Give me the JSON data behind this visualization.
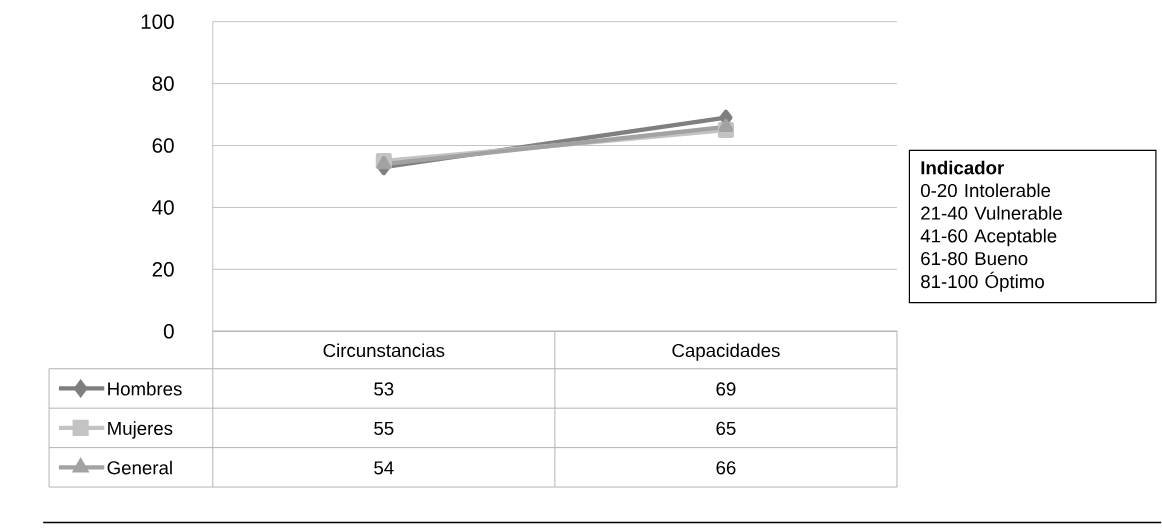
{
  "chart_data": {
    "type": "line",
    "categories": [
      "Circunstancias",
      "Capacidades"
    ],
    "series": [
      {
        "name": "Hombres",
        "color": "#7f7f7f",
        "marker": "diamond",
        "values": [
          53,
          69
        ]
      },
      {
        "name": "Mujeres",
        "color": "#c3c3c3",
        "marker": "square",
        "values": [
          55,
          65
        ]
      },
      {
        "name": "General",
        "color": "#a2a2a2",
        "marker": "triangle",
        "values": [
          54,
          66
        ]
      }
    ],
    "ylim": [
      0,
      100
    ],
    "yticks": [
      0,
      20,
      40,
      60,
      80,
      100
    ],
    "grid": "y",
    "legend": "bottom",
    "data_labels": true,
    "annotations": [
      "Indicador",
      "0-20   Intolerable",
      "21-40  Vulnerable",
      "41-60   Aceptable",
      "61-80   Bueno",
      "81-100 Óptimo"
    ]
  }
}
